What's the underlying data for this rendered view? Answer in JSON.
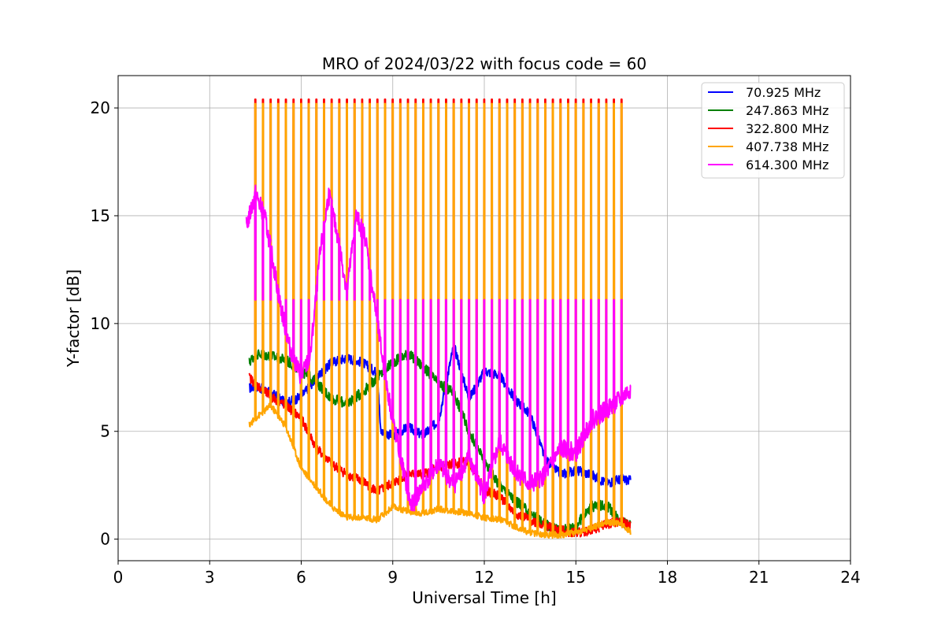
{
  "chart_data": {
    "type": "line",
    "title": "MRO of 2024/03/22 with focus code = 60",
    "xlabel": "Universal Time [h]",
    "ylabel": "Y-factor [dB]",
    "xlim": [
      0,
      24
    ],
    "ylim": [
      -1,
      21.5
    ],
    "x_ticks": [
      0,
      3,
      6,
      9,
      12,
      15,
      18,
      21,
      24
    ],
    "y_ticks": [
      0,
      5,
      10,
      15,
      20
    ],
    "grid": true,
    "legend_position": "top-right",
    "pulses": {
      "start_h": 4.48,
      "period_h": 0.25,
      "count": 49,
      "peak_db": {
        "322.800 MHz": 20.4,
        "407.738 MHz": 20.2,
        "614.300 MHz": 11.1
      }
    },
    "series": [
      {
        "name": "70.925 MHz",
        "color": "#0000ff",
        "x": [
          4.3,
          4.5,
          5.0,
          5.5,
          6.0,
          6.5,
          7.0,
          7.5,
          8.0,
          8.5,
          8.6,
          9.0,
          9.5,
          10.0,
          10.5,
          11.0,
          11.5,
          12.0,
          12.5,
          13.0,
          13.5,
          14.0,
          14.5,
          15.0,
          15.5,
          16.0,
          16.5,
          16.8
        ],
        "values": [
          7.0,
          7.1,
          6.8,
          6.3,
          6.6,
          7.5,
          8.2,
          8.4,
          8.2,
          7.7,
          5.0,
          4.8,
          5.2,
          4.8,
          5.5,
          9.0,
          6.5,
          7.8,
          7.6,
          6.5,
          5.8,
          3.7,
          3.0,
          3.2,
          3.0,
          2.6,
          2.8,
          2.7
        ]
      },
      {
        "name": "247.863 MHz",
        "color": "#008000",
        "x": [
          4.3,
          4.5,
          5.0,
          5.5,
          6.0,
          6.5,
          7.0,
          7.5,
          8.0,
          8.5,
          9.0,
          9.5,
          10.0,
          10.5,
          11.0,
          11.5,
          12.0,
          12.5,
          13.0,
          13.5,
          14.0,
          14.5,
          15.0,
          15.5,
          16.0,
          16.5,
          16.8
        ],
        "values": [
          8.2,
          8.6,
          8.5,
          8.3,
          7.8,
          7.3,
          6.5,
          6.3,
          6.8,
          7.5,
          8.2,
          8.6,
          8.0,
          7.2,
          6.8,
          5.0,
          3.6,
          2.5,
          1.8,
          1.2,
          0.7,
          0.4,
          0.6,
          1.5,
          1.6,
          0.8,
          0.6
        ]
      },
      {
        "name": "322.800 MHz",
        "color": "#ff0000",
        "x": [
          4.3,
          4.5,
          5.0,
          5.5,
          6.0,
          6.5,
          7.0,
          7.5,
          8.0,
          8.5,
          9.0,
          9.5,
          10.0,
          10.5,
          11.0,
          11.5,
          12.0,
          12.5,
          13.0,
          13.5,
          14.0,
          14.5,
          15.0,
          15.5,
          16.0,
          16.5,
          16.8
        ],
        "values": [
          7.5,
          7.2,
          6.6,
          6.2,
          5.6,
          4.2,
          3.5,
          3.0,
          2.7,
          2.2,
          2.6,
          3.0,
          3.0,
          3.3,
          3.5,
          3.6,
          2.3,
          2.0,
          1.2,
          0.9,
          0.6,
          0.4,
          0.3,
          0.4,
          0.7,
          0.8,
          0.6
        ]
      },
      {
        "name": "407.738 MHz",
        "color": "#ffa500",
        "x": [
          4.3,
          4.5,
          5.0,
          5.5,
          6.0,
          6.5,
          7.0,
          7.5,
          8.0,
          8.5,
          9.0,
          9.5,
          10.0,
          10.5,
          11.0,
          11.5,
          12.0,
          12.5,
          13.0,
          13.5,
          14.0,
          14.5,
          15.0,
          15.5,
          16.0,
          16.5,
          16.8
        ],
        "values": [
          5.3,
          5.6,
          6.2,
          5.2,
          3.3,
          2.4,
          1.5,
          1.0,
          1.0,
          0.9,
          1.5,
          1.3,
          1.2,
          1.4,
          1.3,
          1.2,
          1.0,
          0.9,
          0.6,
          0.3,
          0.2,
          0.2,
          0.3,
          0.5,
          0.8,
          0.7,
          0.3
        ]
      },
      {
        "name": "614.300 MHz",
        "color": "#ff00ff",
        "x": [
          4.2,
          4.5,
          4.8,
          5.0,
          5.3,
          5.6,
          6.0,
          6.3,
          6.6,
          6.9,
          7.2,
          7.5,
          7.8,
          8.1,
          8.4,
          8.7,
          9.0,
          9.3,
          9.6,
          10.0,
          10.5,
          11.0,
          11.5,
          12.0,
          12.5,
          13.0,
          13.5,
          14.0,
          14.5,
          15.0,
          15.5,
          16.0,
          16.5,
          16.8
        ],
        "values": [
          14.5,
          16.0,
          15.0,
          13.5,
          11.0,
          9.0,
          7.5,
          8.5,
          13.0,
          16.0,
          14.0,
          11.5,
          15.0,
          14.0,
          11.0,
          8.0,
          5.5,
          3.5,
          1.5,
          2.5,
          3.5,
          2.5,
          3.8,
          2.0,
          4.5,
          3.2,
          2.5,
          3.0,
          4.2,
          4.0,
          5.5,
          6.0,
          6.5,
          7.0
        ]
      }
    ]
  }
}
